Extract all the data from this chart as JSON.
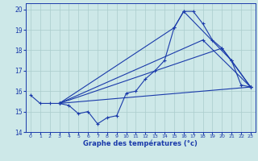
{
  "xlabel": "Graphe des températures (°c)",
  "xlim": [
    -0.5,
    23.5
  ],
  "ylim": [
    14,
    20.3
  ],
  "yticks": [
    14,
    15,
    16,
    17,
    18,
    19,
    20
  ],
  "xticks": [
    0,
    1,
    2,
    3,
    4,
    5,
    6,
    7,
    8,
    9,
    10,
    11,
    12,
    13,
    14,
    15,
    16,
    17,
    18,
    19,
    20,
    21,
    22,
    23
  ],
  "bg_color": "#cde8e8",
  "grid_color": "#aacccc",
  "line_color": "#1a3aaa",
  "line1_x": [
    0,
    1,
    2,
    3,
    4,
    5,
    6,
    7,
    8,
    9,
    10,
    11,
    12,
    13,
    14,
    15,
    16,
    17,
    18,
    19,
    20,
    21,
    22,
    23
  ],
  "line1_y": [
    15.8,
    15.4,
    15.4,
    15.4,
    15.3,
    14.9,
    15.0,
    14.4,
    14.7,
    14.8,
    15.9,
    16.0,
    16.6,
    17.0,
    17.5,
    19.1,
    19.9,
    19.9,
    19.3,
    18.5,
    18.1,
    17.5,
    16.3,
    16.2
  ],
  "line2_x": [
    3,
    15,
    16,
    21,
    23
  ],
  "line2_y": [
    15.4,
    19.1,
    19.9,
    17.5,
    16.2
  ],
  "line3_x": [
    3,
    18,
    23
  ],
  "line3_y": [
    15.4,
    18.5,
    16.2
  ],
  "line4_x": [
    3,
    20,
    23
  ],
  "line4_y": [
    15.4,
    18.1,
    16.2
  ],
  "line5_x": [
    3,
    23
  ],
  "line5_y": [
    15.4,
    16.2
  ]
}
